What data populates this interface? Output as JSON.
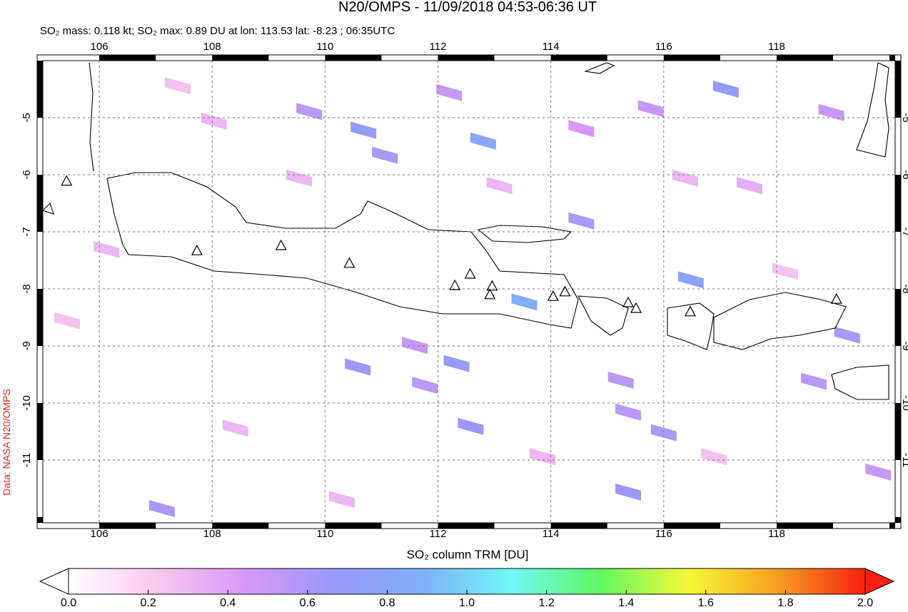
{
  "chart_data": {
    "type": "map",
    "title": "N20/OMPS - 11/09/2018 04:53-06:36 UT",
    "subtitle": "SO₂ mass: 0.118 kt; SO₂ max: 0.89 DU at lon: 113.53 lat: -8.23 ; 06:35UTC",
    "credit": "Data: NASA N20/OMPS",
    "xlim": [
      105,
      120.1
    ],
    "ylim": [
      -12.1,
      -4.0
    ],
    "xticks": [
      106,
      108,
      110,
      112,
      114,
      116,
      118
    ],
    "yticks": [
      -5,
      -6,
      -7,
      -8,
      -9,
      -10,
      -11
    ],
    "grid": true,
    "pixels": {
      "lon": [
        112.2,
        112.8,
        110.68,
        109.72,
        111.06,
        114.54,
        116.48,
        113.53,
        117.1,
        112.58,
        112.33,
        110.58,
        115.37,
        116.0,
        115.37,
        115.24,
        118.66,
        119.8,
        107.11,
        111.59,
        111.77,
        118.97,
        115.77,
        114.54,
        119.25,
        108.03,
        109.54,
        106.13,
        113.09,
        118.15,
        108.41,
        116.89,
        110.3,
        117.52,
        107.39,
        116.38,
        113.85,
        105.43
      ],
      "lat": [
        -4.56,
        -5.41,
        -5.22,
        -4.89,
        -5.66,
        -6.81,
        -7.84,
        -8.23,
        -4.5,
        -10.41,
        -9.31,
        -9.37,
        -11.56,
        -10.52,
        -10.16,
        -9.6,
        -9.62,
        -11.21,
        -11.85,
        -8.99,
        -9.69,
        -4.91,
        -4.84,
        -5.19,
        -8.81,
        -5.06,
        -6.06,
        -7.31,
        -6.19,
        -7.69,
        -10.44,
        -10.94,
        -11.69,
        -6.19,
        -4.44,
        -6.06,
        -10.94,
        -8.56
      ],
      "values": [
        0.5,
        0.8,
        0.7,
        0.55,
        0.6,
        0.6,
        0.75,
        0.89,
        0.7,
        0.65,
        0.7,
        0.65,
        0.65,
        0.6,
        0.55,
        0.55,
        0.55,
        0.5,
        0.6,
        0.5,
        0.55,
        0.5,
        0.5,
        0.45,
        0.6,
        0.3,
        0.3,
        0.3,
        0.3,
        0.25,
        0.3,
        0.25,
        0.3,
        0.35,
        0.25,
        0.3,
        0.3,
        0.25
      ]
    },
    "volcanoes": {
      "lon": [
        107.73,
        109.22,
        110.43,
        112.3,
        112.57,
        112.96,
        112.92,
        114.04,
        114.25,
        115.37,
        115.51,
        116.47,
        119.06,
        105.42
      ],
      "lat": [
        -7.34,
        -7.25,
        -7.56,
        -7.95,
        -7.75,
        -7.96,
        -8.11,
        -8.14,
        -8.06,
        -8.25,
        -8.35,
        -8.41,
        -8.19,
        -6.12
      ]
    },
    "colorbar": {
      "label": "SO₂ column TRM [DU]",
      "lim": [
        0,
        2
      ],
      "ticks": [
        {
          "value": 0,
          "label": "0.0"
        },
        0.2,
        0.4,
        0.6,
        0.8,
        {
          "value": 1,
          "label": "1.0"
        },
        1.2,
        1.4,
        1.6,
        1.8,
        {
          "value": 2,
          "label": "2.0"
        }
      ],
      "colors": [
        "#ffffff",
        "#f8c8f0",
        "#d898f8",
        "#9898f8",
        "#80b0f8",
        "#70f8f8",
        "#60f860",
        "#f8f838",
        "#f8a020",
        "#f82010"
      ]
    }
  }
}
